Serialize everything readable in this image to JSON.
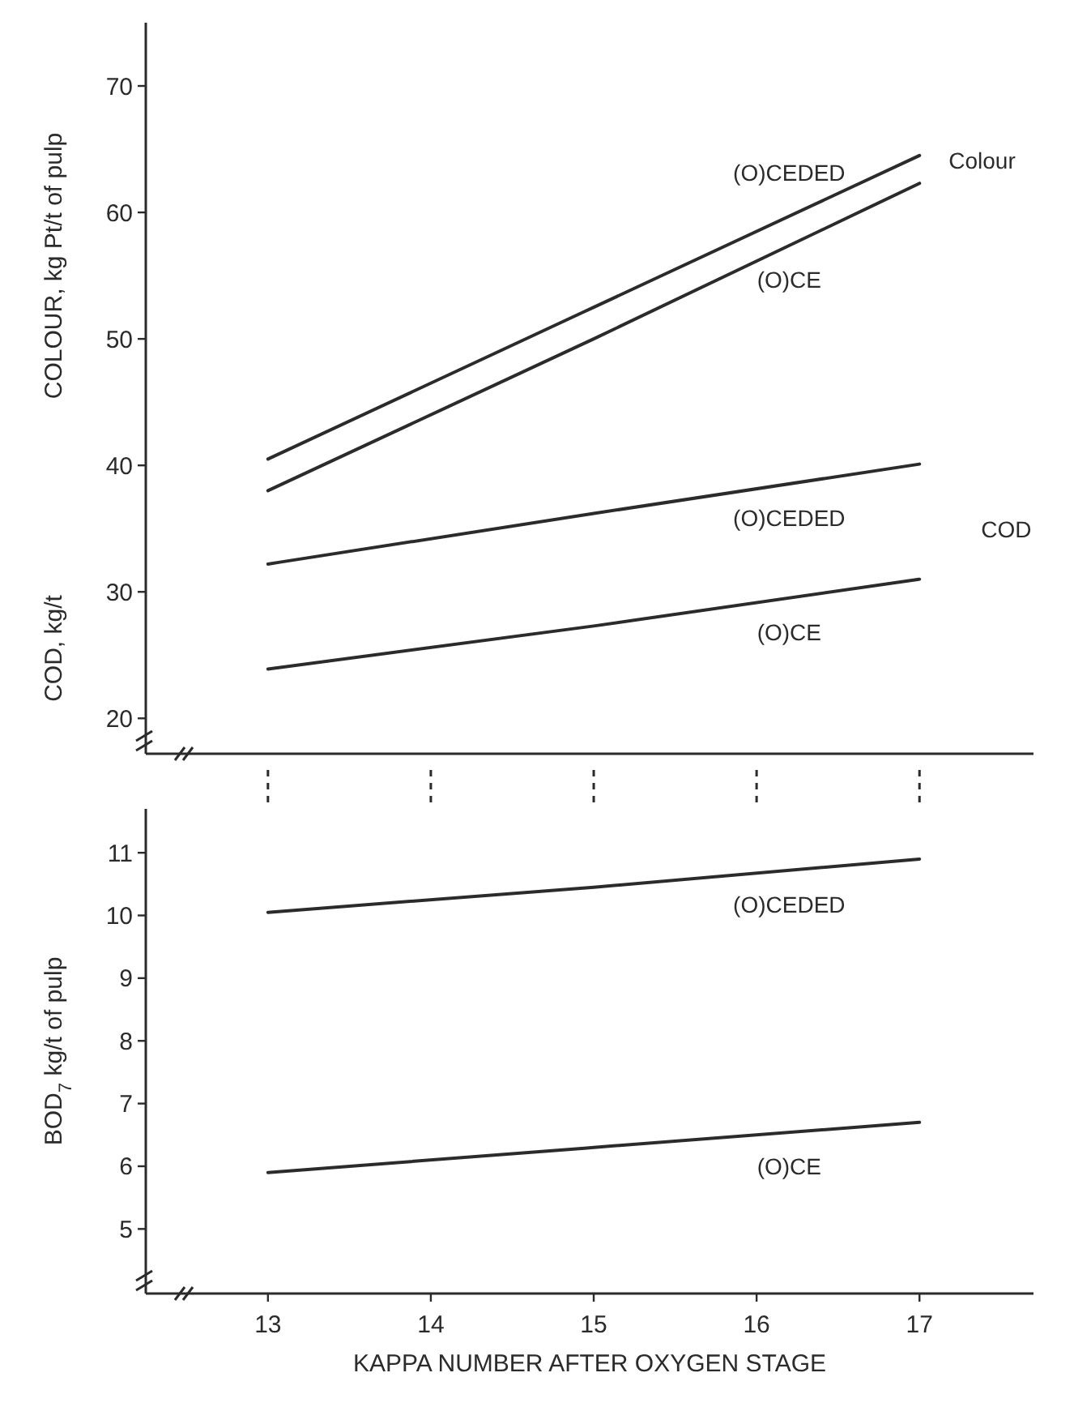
{
  "chart_data": [
    {
      "type": "line",
      "ylabel": "COLOUR, kg Pt/t of pulp",
      "x": [
        13,
        15,
        17
      ],
      "xlim": [
        12.25,
        17.7
      ],
      "xticks": [
        {
          "value": 13,
          "label": null
        },
        {
          "value": 14,
          "label": null
        },
        {
          "value": 15,
          "label": null
        },
        {
          "value": 16,
          "label": null
        },
        {
          "value": 17,
          "label": null
        }
      ],
      "ylim": [
        17.2,
        75
      ],
      "yticks": [
        20,
        30,
        40,
        50,
        60,
        70
      ],
      "tick_labels": "y",
      "grid": false,
      "marker": "none",
      "line_style": "solid",
      "series": [
        {
          "name": "(O)CEDED",
          "color": "#2b2b2b",
          "values": [
            40.5,
            52.5,
            64.5
          ]
        },
        {
          "name": "(O)CE",
          "color": "#2b2b2b",
          "values": [
            38,
            50,
            62.3
          ]
        },
        {
          "name": "(O)CEDED",
          "color": "#2b2b2b",
          "values": [
            32.2,
            36.2,
            40.1
          ]
        },
        {
          "name": "(O)CE",
          "color": "#2b2b2b",
          "values": [
            23.9,
            27.3,
            31
          ]
        }
      ],
      "annotations": [
        "COD, kg/t",
        "Colour",
        "COD"
      ]
    },
    {
      "type": "line",
      "xlabel": "KAPPA NUMBER AFTER OXYGEN STAGE",
      "ylabel": "BOD$_{7}$ kg/t of pulp",
      "x": [
        13,
        15,
        17
      ],
      "xlim": [
        12.25,
        17.7
      ],
      "xticks": [
        13,
        14,
        15,
        16,
        17
      ],
      "ylim": [
        3.97,
        11.7
      ],
      "yticks": [
        5,
        6,
        7,
        8,
        9,
        10,
        11
      ],
      "grid": false,
      "marker": "none",
      "line_style": "solid",
      "series": [
        {
          "name": "(O)CEDED",
          "color": "#2b2b2b",
          "values": [
            10.05,
            10.45,
            10.9
          ]
        },
        {
          "name": "(O)CE",
          "color": "#2b2b2b",
          "values": [
            5.9,
            6.3,
            6.7
          ]
        }
      ]
    }
  ]
}
